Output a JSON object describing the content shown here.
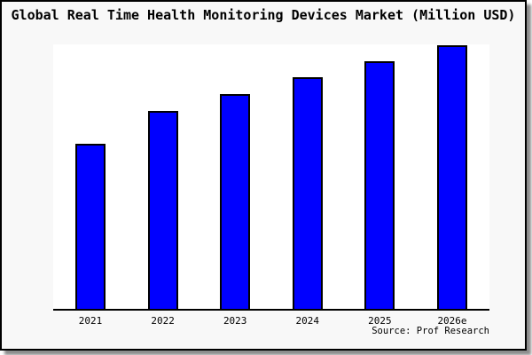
{
  "frame": {
    "bg_color": "#f8f8f8",
    "border_color": "#000000"
  },
  "chart_data": {
    "type": "bar",
    "title": "Global Real Time Health Monitoring Devices Market (Million USD)",
    "categories": [
      "2021",
      "2022",
      "2023",
      "2024",
      "2025",
      "2026e"
    ],
    "values": [
      188,
      225,
      244,
      263,
      281,
      299
    ],
    "value_note": "no y-axis ticks or data labels visible; values are relative bar heights on a 0-300 scale",
    "ylim": [
      0,
      300
    ],
    "xlabel": "",
    "ylabel": "",
    "grid": false,
    "legend": false,
    "y_axis_visible": false,
    "bar_color": "#0000ff",
    "bar_border_color": "#000000",
    "plot_bg": "#ffffff",
    "source_note": "Source: Prof Research"
  }
}
